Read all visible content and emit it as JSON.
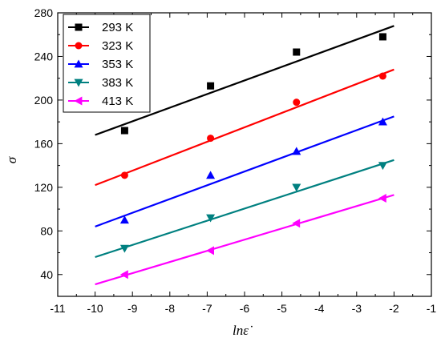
{
  "chart_data": {
    "type": "scatter",
    "title": "",
    "xlabel": "lnε̇",
    "ylabel": "σ",
    "xlim": [
      -11,
      -1
    ],
    "ylim": [
      20,
      280
    ],
    "xticks": [
      -11,
      -10,
      -9,
      -8,
      -7,
      -6,
      -5,
      -4,
      -3,
      -2,
      -1
    ],
    "yticks": [
      40,
      80,
      120,
      160,
      200,
      240,
      280
    ],
    "grid": false,
    "legend_position": "top-left",
    "series": [
      {
        "name": "293 K",
        "marker": "square",
        "color": "#000000",
        "x": [
          -9.21,
          -6.91,
          -4.61,
          -2.3
        ],
        "y": [
          172,
          213,
          244,
          258
        ],
        "fit": {
          "x": [
            -10,
            -2
          ],
          "y": [
            168,
            268
          ]
        }
      },
      {
        "name": "323 K",
        "marker": "circle",
        "color": "#ff0000",
        "x": [
          -9.21,
          -6.91,
          -4.61,
          -2.3
        ],
        "y": [
          131,
          165,
          198,
          222
        ],
        "fit": {
          "x": [
            -10,
            -2
          ],
          "y": [
            122,
            228
          ]
        }
      },
      {
        "name": "353 K",
        "marker": "triangle-up",
        "color": "#0000ff",
        "x": [
          -9.21,
          -6.91,
          -4.61,
          -2.3
        ],
        "y": [
          90,
          131,
          153,
          180
        ],
        "fit": {
          "x": [
            -10,
            -2
          ],
          "y": [
            84,
            185
          ]
        }
      },
      {
        "name": "383 K",
        "marker": "triangle-down",
        "color": "#008080",
        "x": [
          -9.21,
          -6.91,
          -4.61,
          -2.3
        ],
        "y": [
          64,
          92,
          120,
          140
        ],
        "fit": {
          "x": [
            -10,
            -2
          ],
          "y": [
            56,
            145
          ]
        }
      },
      {
        "name": "413 K",
        "marker": "triangle-left",
        "color": "#ff00ff",
        "x": [
          -9.21,
          -6.91,
          -4.61,
          -2.3
        ],
        "y": [
          40,
          62,
          87,
          110
        ],
        "fit": {
          "x": [
            -10,
            -2
          ],
          "y": [
            31,
            113
          ]
        }
      }
    ]
  }
}
